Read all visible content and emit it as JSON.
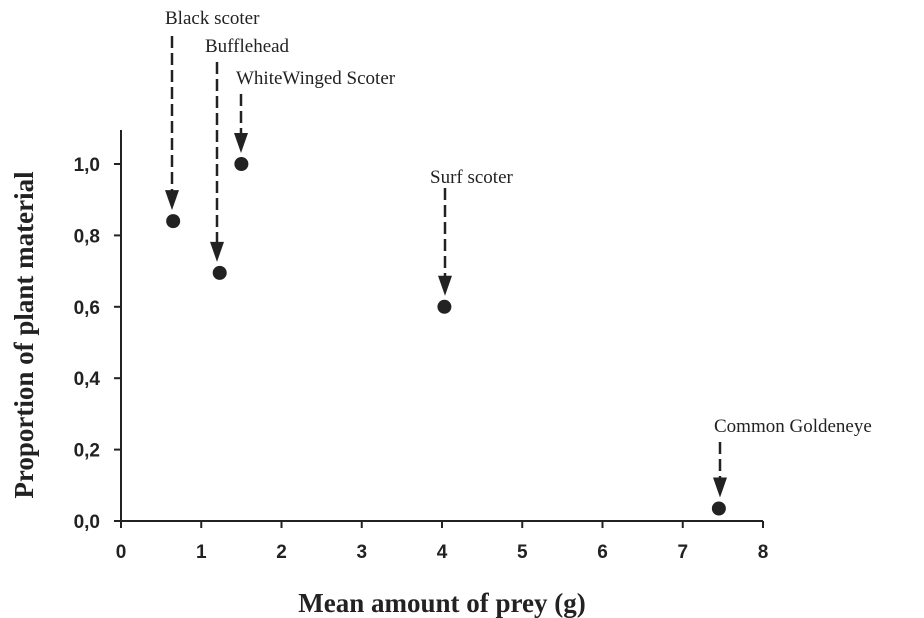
{
  "chart_data": {
    "type": "scatter",
    "xlabel": "Mean amount of prey (g)",
    "ylabel": "Proportion of plant material",
    "xlim": [
      0,
      8
    ],
    "ylim": [
      0,
      1.1
    ],
    "x_ticks": [
      0,
      1,
      2,
      3,
      4,
      5,
      6,
      7,
      8
    ],
    "x_tick_labels": [
      "0",
      "1",
      "2",
      "3",
      "4",
      "5",
      "6",
      "7",
      "8"
    ],
    "y_ticks": [
      0,
      0.2,
      0.4,
      0.6,
      0.8,
      1.0
    ],
    "y_tick_labels": [
      "0,0",
      "0,2",
      "0,4",
      "0,6",
      "0,8",
      "1,0"
    ],
    "grid": false,
    "legend": "none",
    "marker_color": "#222222",
    "points": [
      {
        "label": "Black scoter",
        "x": 0.65,
        "y": 0.84
      },
      {
        "label": "Bufflehead",
        "x": 1.23,
        "y": 0.695
      },
      {
        "label": "WhiteWinged Scoter",
        "x": 1.5,
        "y": 1.0
      },
      {
        "label": "Surf scoter",
        "x": 4.03,
        "y": 0.6
      },
      {
        "label": "Common Goldeneye",
        "x": 7.45,
        "y": 0.035
      }
    ]
  }
}
